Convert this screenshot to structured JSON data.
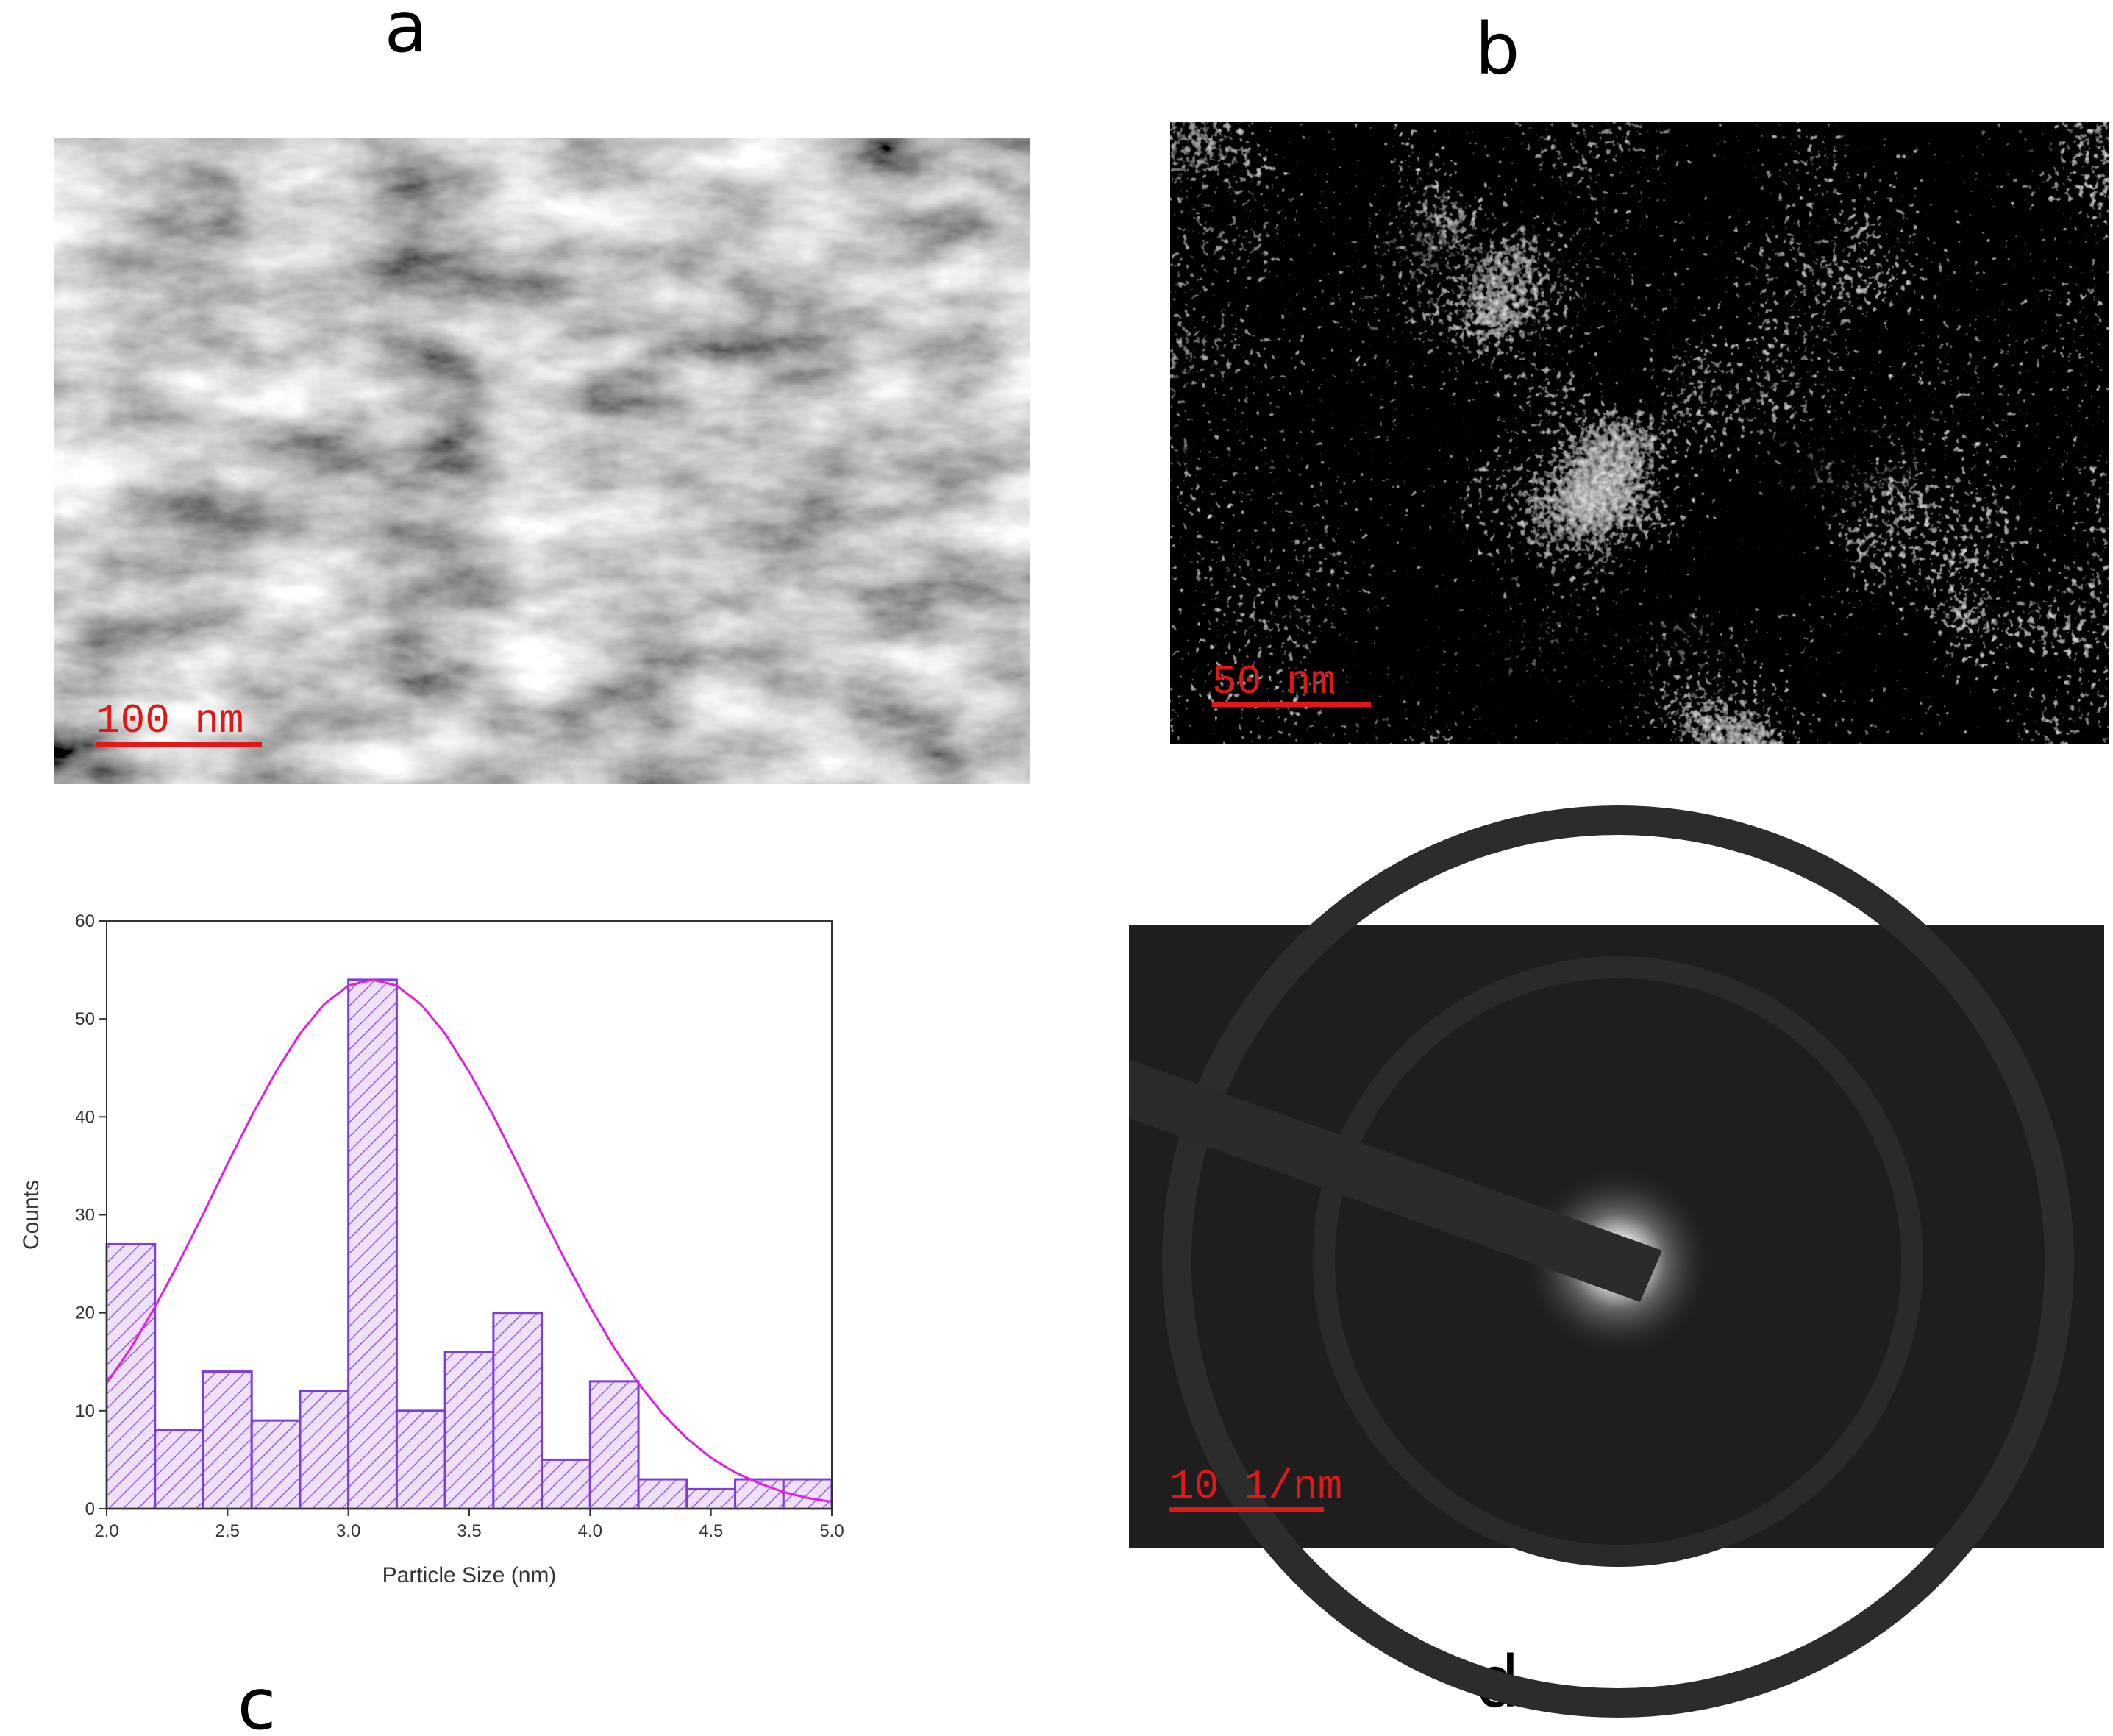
{
  "panels": {
    "a": {
      "label": "a",
      "scale_bar": "100 nm"
    },
    "b": {
      "label": "b",
      "scale_bar": "50 nm"
    },
    "c": {
      "label": "c"
    },
    "d": {
      "label": "d",
      "scale_bar": "10 1/nm"
    }
  },
  "chart_data": {
    "type": "histogram",
    "xlabel": "Particle Size (nm)",
    "ylabel": "Counts",
    "bins": [
      2.0,
      2.2,
      2.4,
      2.6,
      2.8,
      3.0,
      3.2,
      3.4,
      3.6,
      3.8,
      4.0,
      4.2,
      4.4,
      4.6,
      4.8,
      5.0
    ],
    "values": [
      27,
      8,
      14,
      9,
      12,
      54,
      10,
      16,
      20,
      5,
      13,
      3,
      2,
      3,
      3
    ],
    "color": "#7b3fd6",
    "fit": {
      "color": "#e020e0",
      "x": [
        2.0,
        2.1,
        2.2,
        2.3,
        2.4,
        2.5,
        2.6,
        2.7,
        2.8,
        2.9,
        3.0,
        3.1,
        3.2,
        3.3,
        3.4,
        3.5,
        3.6,
        3.7,
        3.8,
        3.9,
        4.0,
        4.1,
        4.2,
        4.3,
        4.4,
        4.5,
        4.6,
        4.7,
        4.8,
        4.9,
        5.0
      ],
      "values": [
        12.8,
        16.4,
        20.6,
        25.2,
        30.1,
        35.2,
        40.1,
        44.6,
        48.5,
        51.5,
        53.4,
        54,
        53.4,
        51.5,
        48.5,
        44.6,
        40.1,
        35.2,
        30.1,
        25.2,
        20.6,
        16.4,
        12.8,
        9.7,
        7.2,
        5.2,
        3.7,
        2.6,
        1.7,
        1.1,
        0.7
      ]
    },
    "xlim": [
      2.0,
      5.0
    ],
    "ylim": [
      0,
      60
    ],
    "xticks": [
      {
        "value": 2.0,
        "label": "2.0"
      },
      {
        "value": 2.5,
        "label": "2.5"
      },
      {
        "value": 3.0,
        "label": "3.0"
      },
      {
        "value": 3.5,
        "label": "3.5"
      },
      {
        "value": 4.0,
        "label": "4.0"
      },
      {
        "value": 4.5,
        "label": "4.5"
      },
      {
        "value": 5.0,
        "label": "5.0"
      }
    ],
    "yticks": [
      0,
      10,
      20,
      30,
      40,
      50,
      60
    ]
  }
}
